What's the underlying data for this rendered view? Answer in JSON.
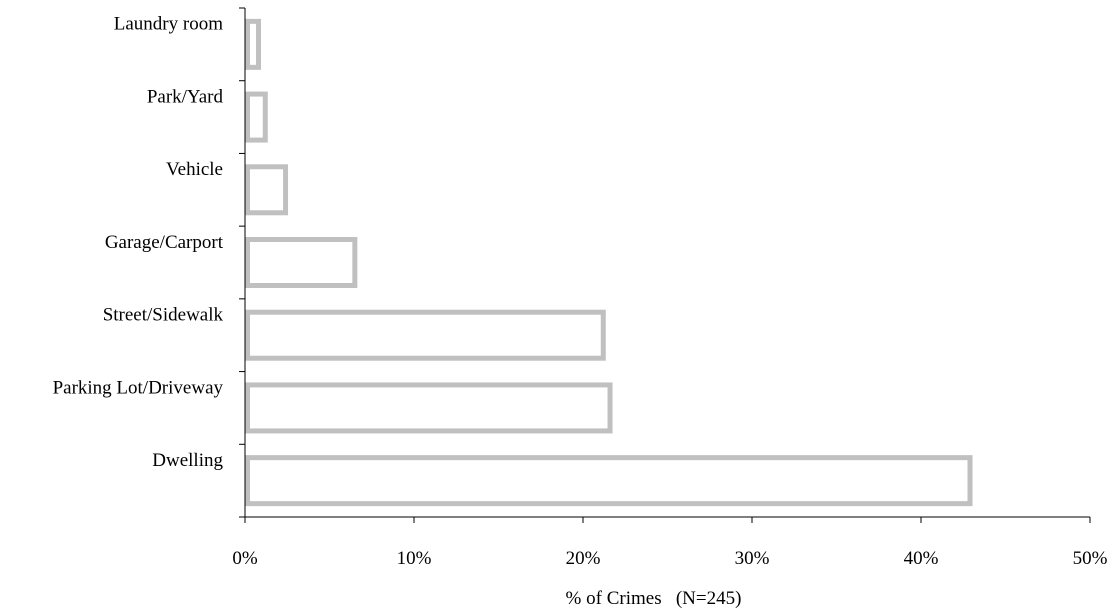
{
  "chart_data": {
    "type": "bar",
    "orientation": "horizontal",
    "title": "",
    "xlabel": "% of Crimes   (N=245)",
    "ylabel": "",
    "categories": [
      "Dwelling",
      "Parking Lot/Driveway",
      "Street/Sidewalk",
      "Garage/Carport",
      "Vehicle",
      "Park/Yard",
      "Laundry room"
    ],
    "values": [
      42.9,
      21.6,
      21.2,
      6.5,
      2.4,
      1.2,
      0.8
    ],
    "xlim": [
      0,
      50
    ],
    "x_ticks": [
      "0%",
      "10%",
      "20%",
      "30%",
      "40%",
      "50%"
    ],
    "x_tick_values": [
      0,
      10,
      20,
      30,
      40,
      50
    ],
    "grid": false,
    "legend": "none",
    "bar_style": "outline",
    "colors": {
      "bar_outline": "#c0c0c0",
      "bar_fill": "#ffffff",
      "axis": "#000000"
    }
  }
}
